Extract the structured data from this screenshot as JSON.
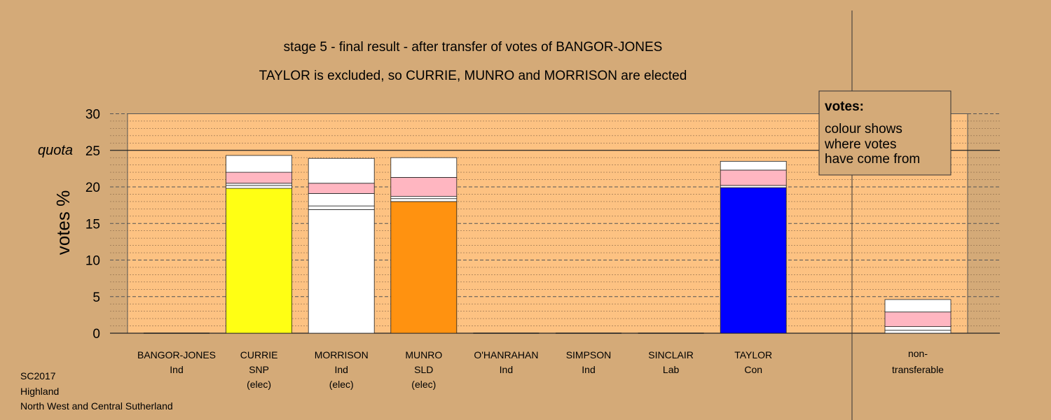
{
  "chart_data": {
    "type": "bar",
    "stacked": true,
    "title": "stage 5 - final result - after transfer of votes of BANGOR-JONES",
    "subtitle": "TAYLOR is excluded, so CURRIE, MUNRO and MORRISON are elected",
    "ylabel": "votes %",
    "ylim": [
      0,
      30
    ],
    "yticks": [
      0,
      5,
      10,
      15,
      20,
      25,
      30
    ],
    "quota": 25,
    "quota_label": "quota",
    "grid": true,
    "legend": {
      "title": "votes:",
      "lines": [
        "colour shows",
        "where votes",
        "have come from"
      ],
      "placement": "top-right"
    },
    "candidates": [
      {
        "name": "BANGOR-JONES",
        "party": "Ind",
        "status": "",
        "segments": []
      },
      {
        "name": "CURRIE",
        "party": "SNP",
        "status": "(elec)",
        "segments": [
          {
            "value": 19.8,
            "color": "#ffff14"
          },
          {
            "value": 0.4,
            "color": "#ffffff"
          },
          {
            "value": 0.3,
            "color": "#ffffff"
          },
          {
            "value": 1.5,
            "color": "#ffb6c1"
          },
          {
            "value": 2.3,
            "color": "#ffffff"
          }
        ]
      },
      {
        "name": "MORRISON",
        "party": "Ind",
        "status": "(elec)",
        "segments": [
          {
            "value": 16.9,
            "color": "#ffffff"
          },
          {
            "value": 0.5,
            "color": "#ffffff"
          },
          {
            "value": 1.7,
            "color": "#ffffff"
          },
          {
            "value": 1.4,
            "color": "#ffb6c1"
          },
          {
            "value": 3.4,
            "color": "#ffffff"
          }
        ]
      },
      {
        "name": "MUNRO",
        "party": "SLD",
        "status": "(elec)",
        "segments": [
          {
            "value": 18.0,
            "color": "#ff9210"
          },
          {
            "value": 0.4,
            "color": "#ffffff"
          },
          {
            "value": 0.3,
            "color": "#ffffff"
          },
          {
            "value": 2.6,
            "color": "#ffb6c1"
          },
          {
            "value": 2.7,
            "color": "#ffffff"
          }
        ]
      },
      {
        "name": "O'HANRAHAN",
        "party": "Ind",
        "status": "",
        "segments": []
      },
      {
        "name": "SIMPSON",
        "party": "Ind",
        "status": "",
        "segments": []
      },
      {
        "name": "SINCLAIR",
        "party": "Lab",
        "status": "",
        "segments": []
      },
      {
        "name": "TAYLOR",
        "party": "Con",
        "status": "",
        "segments": [
          {
            "value": 19.9,
            "color": "#0000ff"
          },
          {
            "value": 0.3,
            "color": "#ffffff"
          },
          {
            "value": 2.1,
            "color": "#ffb6c1"
          },
          {
            "value": 1.2,
            "color": "#ffffff"
          }
        ]
      }
    ],
    "nontransferable": {
      "label1": "non-",
      "label2": "transferable",
      "segments": [
        {
          "value": 0.4,
          "color": "#ffffff"
        },
        {
          "value": 0.5,
          "color": "#ffffff"
        },
        {
          "value": 2.0,
          "color": "#ffb6c1"
        },
        {
          "value": 1.7,
          "color": "#ffffff"
        }
      ]
    }
  },
  "footer": {
    "line1": "SC2017",
    "line2": "Highland",
    "line3": "North West and Central Sutherland"
  },
  "colors": {
    "background": "#d4aa78",
    "plot_area": "#fdc282",
    "snp": "#ffff14",
    "sld": "#ff9210",
    "con": "#0000ff",
    "transfer": "#ffb6c1"
  }
}
